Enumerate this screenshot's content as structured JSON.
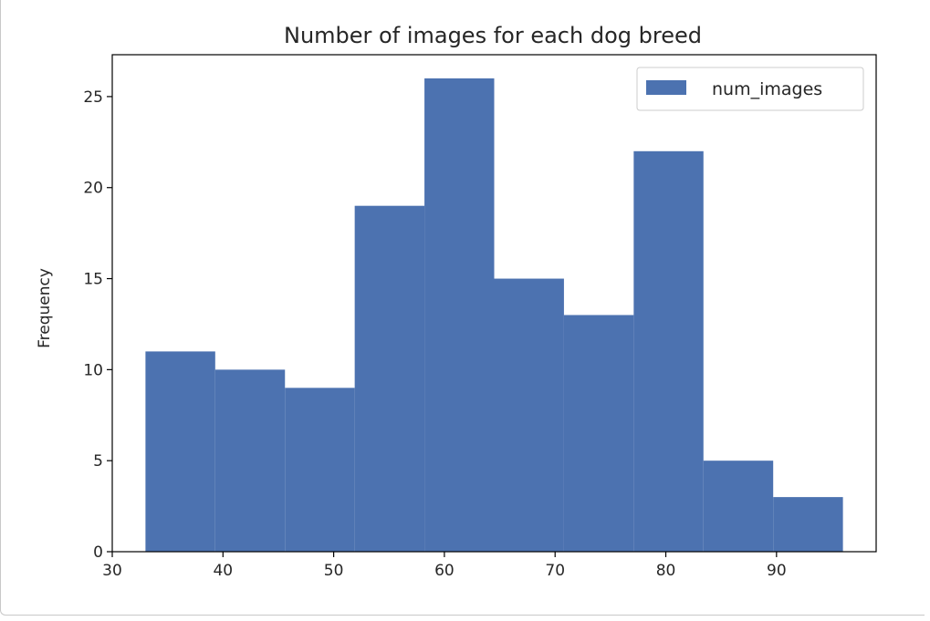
{
  "chart_data": {
    "type": "bar",
    "title": "Number of images for each dog breed",
    "xlabel": "",
    "ylabel": "Frequency",
    "bin_edges": [
      33.0,
      39.3,
      45.6,
      51.9,
      58.2,
      64.5,
      70.8,
      77.1,
      83.4,
      89.7,
      96.0
    ],
    "values": [
      11,
      10,
      9,
      19,
      26,
      15,
      13,
      22,
      5,
      3
    ],
    "series": [
      {
        "name": "num_images",
        "color": "#4c72b0"
      }
    ],
    "xlim": [
      30,
      99
    ],
    "ylim": [
      0,
      27.3
    ],
    "xticks": [
      30,
      40,
      50,
      60,
      70,
      80,
      90
    ],
    "yticks": [
      0,
      5,
      10,
      15,
      20,
      25
    ],
    "grid": false,
    "legend_position": "top-right"
  }
}
